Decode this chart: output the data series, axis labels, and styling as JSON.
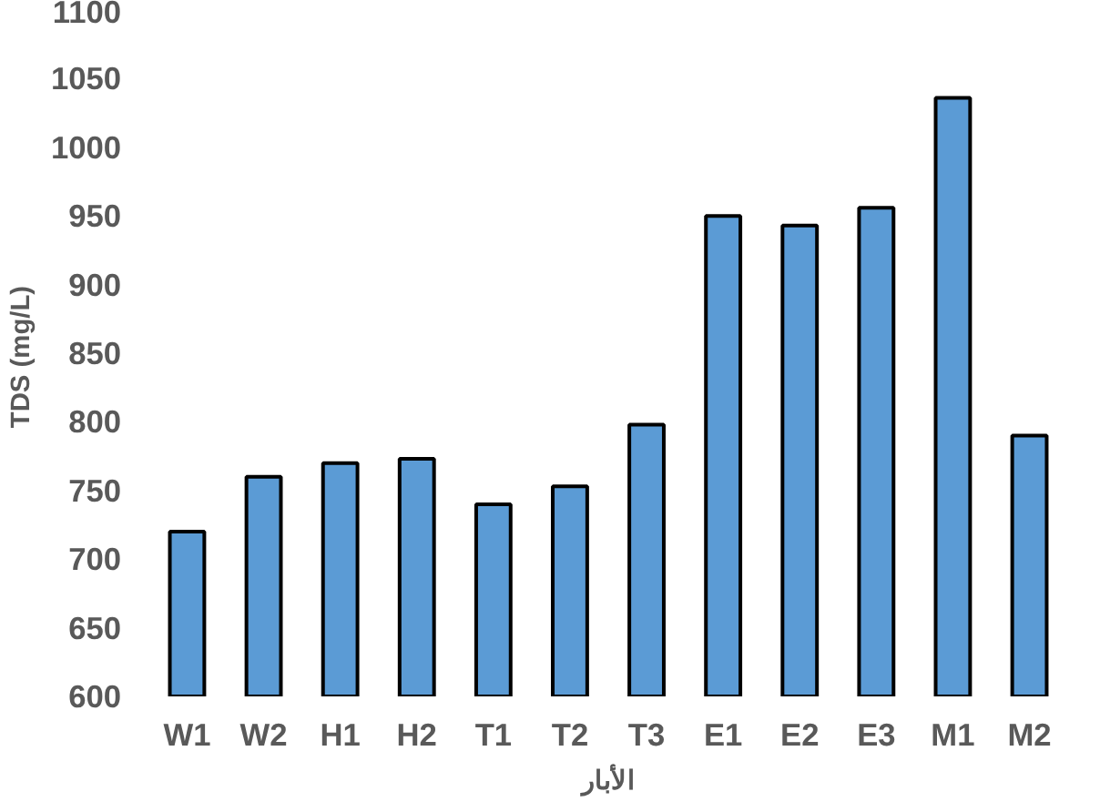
{
  "chart_data": {
    "type": "bar",
    "xlabel": "الأبار",
    "ylabel": "TDS  (mg/L)",
    "categories": [
      "W1",
      "W2",
      "H1",
      "H2",
      "T1",
      "T2",
      "T3",
      "E1",
      "E2",
      "E3",
      "M1",
      "M2"
    ],
    "values": [
      720,
      760,
      770,
      773,
      740,
      753,
      798,
      950,
      943,
      956,
      1036,
      790
    ],
    "color": "#5b9bd5",
    "ylim": [
      600,
      1100
    ],
    "yticks": [
      600,
      650,
      700,
      750,
      800,
      850,
      900,
      950,
      1000,
      1050,
      1100
    ],
    "grid": false
  }
}
